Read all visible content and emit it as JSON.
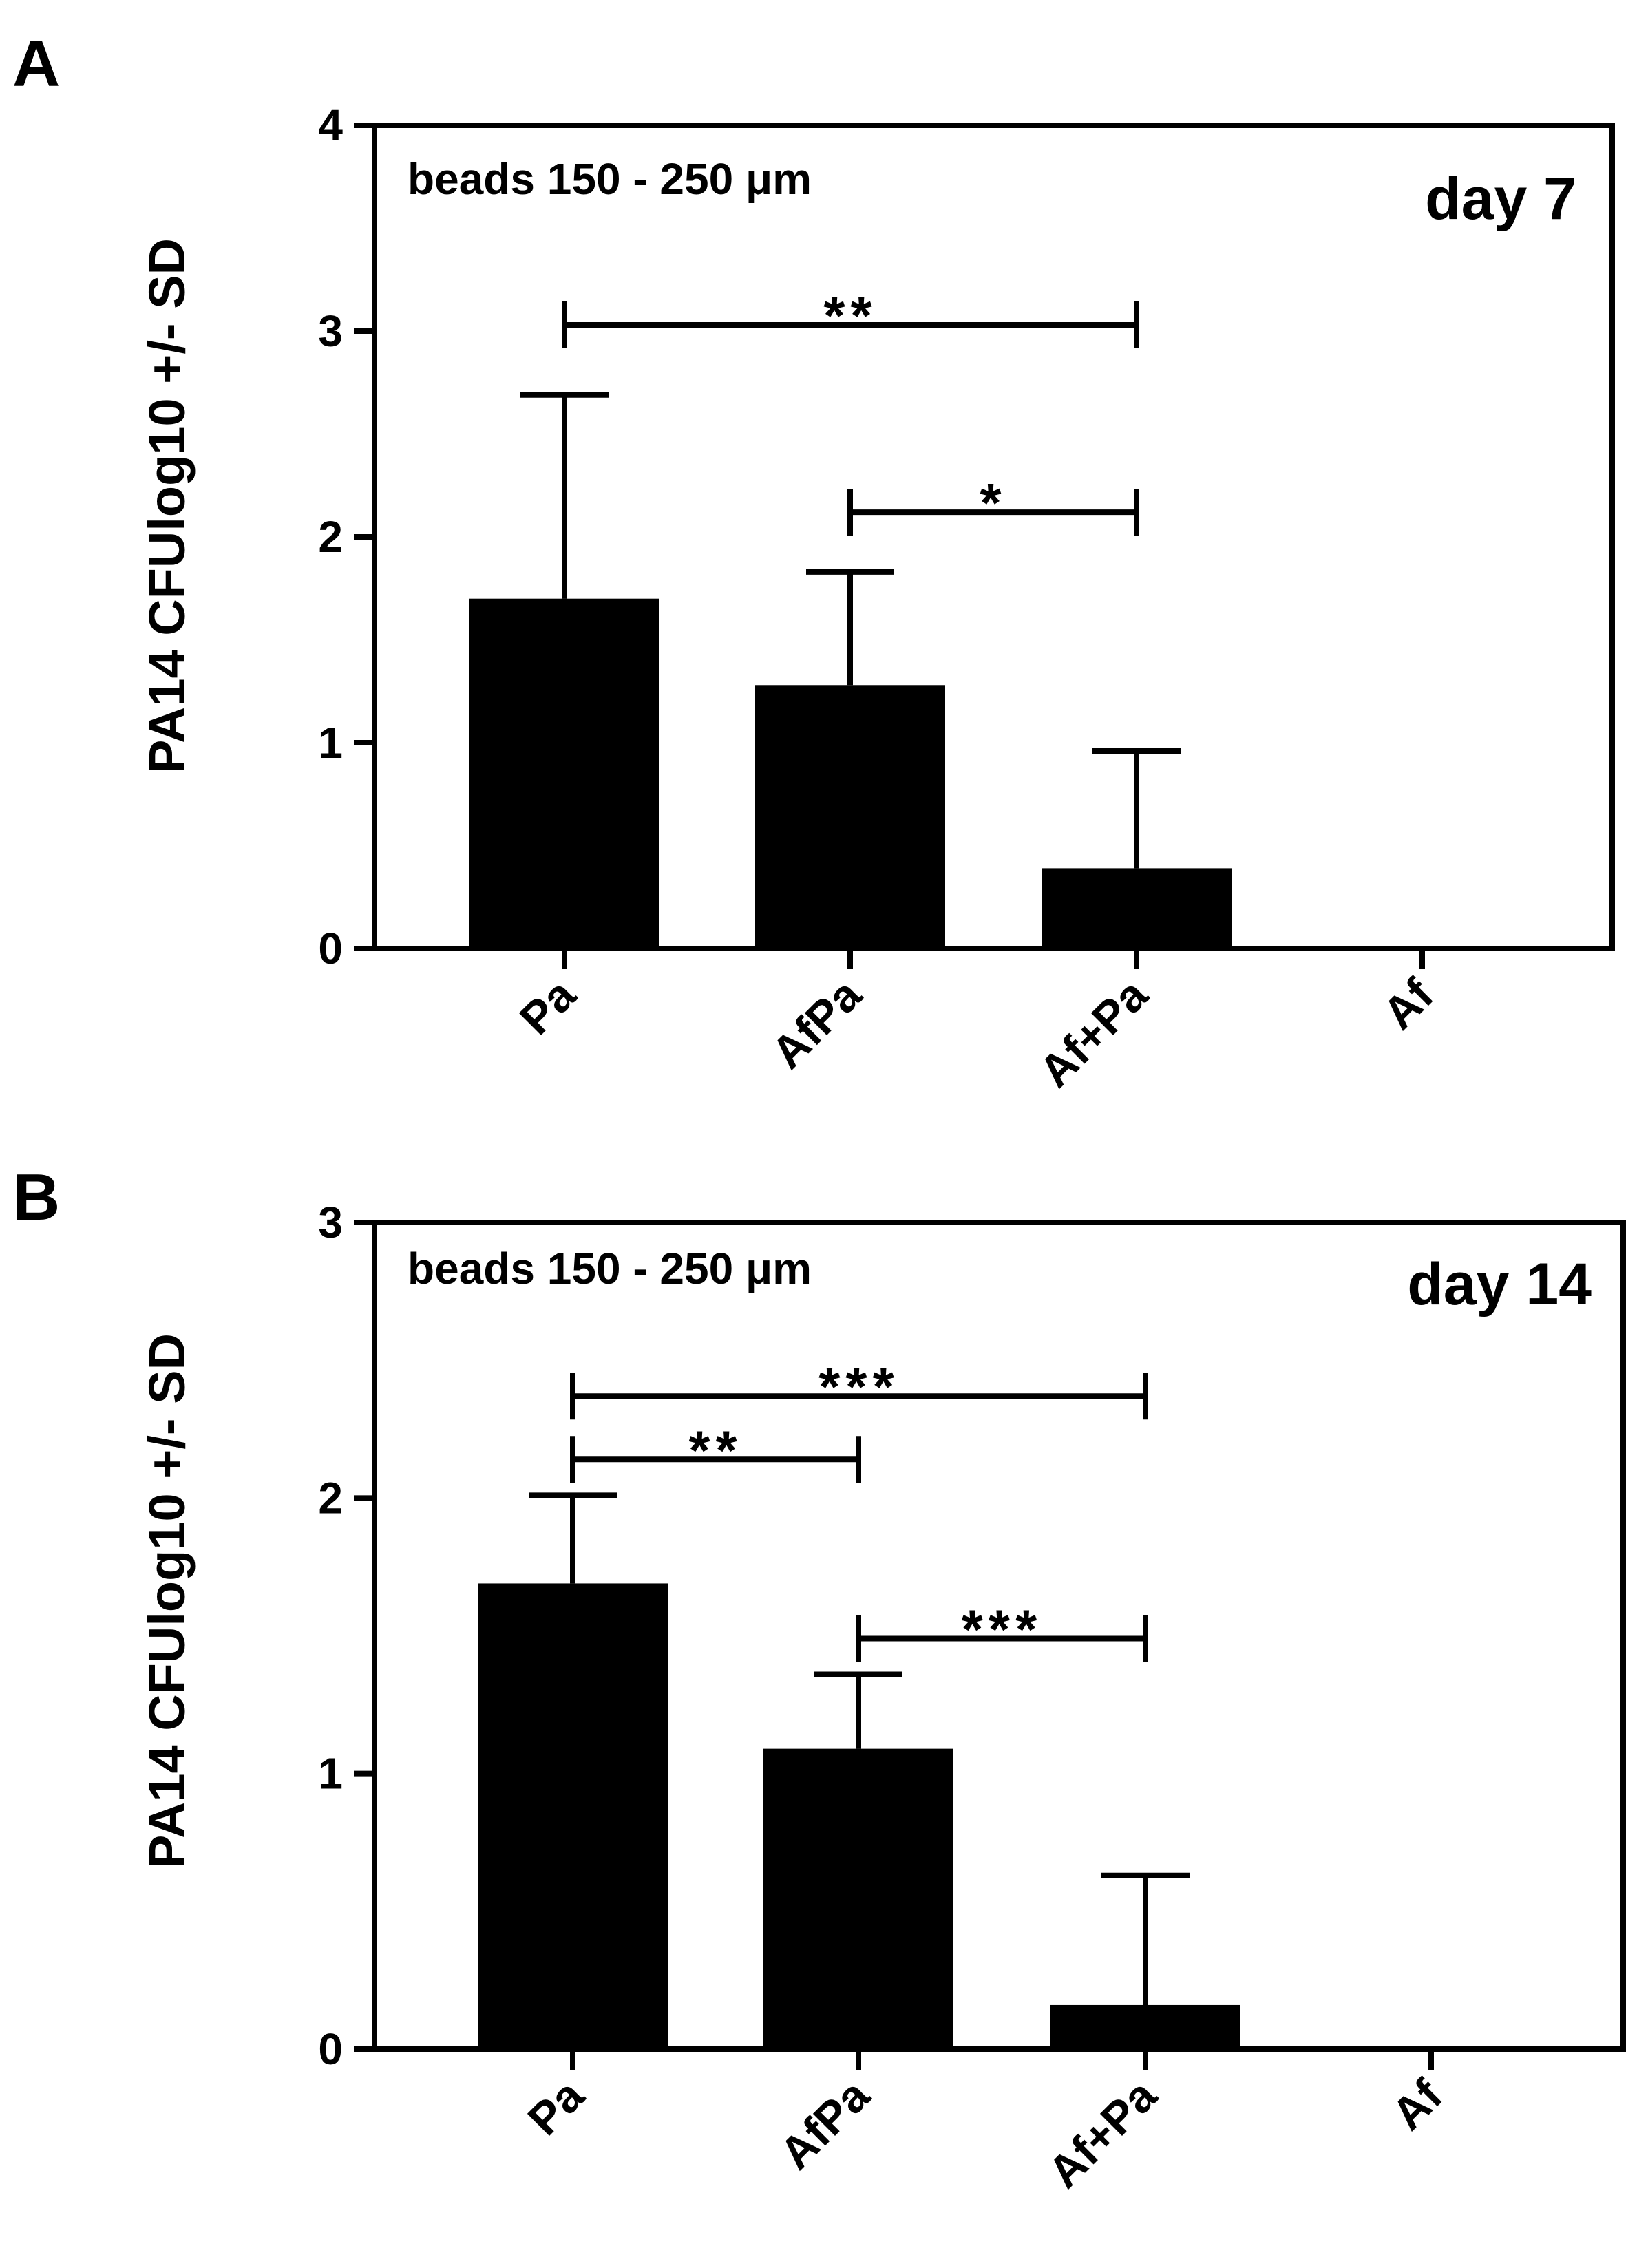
{
  "colors": {
    "bar": "#000000",
    "axis": "#000000",
    "background": "#ffffff"
  },
  "chart_data": [
    {
      "panel": "A",
      "type": "bar",
      "categories": [
        "Pa",
        "AfPa",
        "Af+Pa",
        "Af"
      ],
      "values": [
        1.7,
        1.28,
        0.39,
        0.0
      ],
      "error_sd": [
        0.99,
        0.55,
        0.57,
        0.0
      ],
      "ylabel": "PA14 CFUlog10 +/- SD",
      "xlabel": "",
      "ylim": [
        0,
        4
      ],
      "yticks": [
        "0",
        "1",
        "2",
        "3",
        "4"
      ],
      "annotation": "beads 150 - 250 μm",
      "timepoint": "day 7",
      "significance": [
        {
          "from": "Pa",
          "to": "Af+Pa",
          "stars": "**",
          "y": 3.03
        },
        {
          "from": "AfPa",
          "to": "Af+Pa",
          "stars": "*",
          "y": 2.12
        }
      ]
    },
    {
      "panel": "B",
      "type": "bar",
      "categories": [
        "Pa",
        "AfPa",
        "Af+Pa",
        "Af"
      ],
      "values": [
        1.69,
        1.09,
        0.16,
        0.0
      ],
      "error_sd": [
        0.32,
        0.27,
        0.47,
        0.0
      ],
      "ylabel": "PA14 CFUlog10 +/- SD",
      "xlabel": "",
      "ylim": [
        0,
        3
      ],
      "yticks": [
        "0",
        "1",
        "2",
        "3"
      ],
      "annotation": "beads 150 - 250 μm",
      "timepoint": "day 14",
      "significance": [
        {
          "from": "Pa",
          "to": "Af+Pa",
          "stars": "***",
          "y": 2.37
        },
        {
          "from": "Pa",
          "to": "AfPa",
          "stars": "**",
          "y": 2.14
        },
        {
          "from": "AfPa",
          "to": "Af+Pa",
          "stars": "***",
          "y": 1.49
        }
      ]
    }
  ]
}
